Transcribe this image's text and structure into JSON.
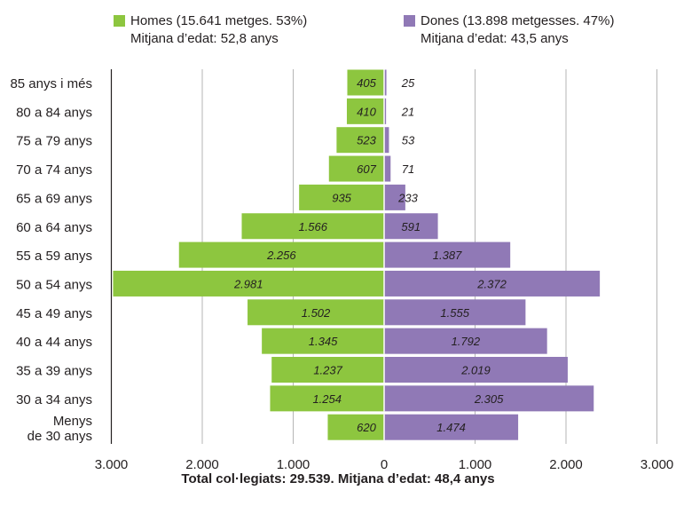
{
  "chart_data": {
    "type": "bar",
    "orientation": "horizontal",
    "layout": "population-pyramid",
    "categories": [
      "85 anys i més",
      "80 a 84 anys",
      "75 a 79 anys",
      "70 a 74 anys",
      "65 a 69 anys",
      "60 a 64 anys",
      "55 a 59 anys",
      "50 a 54 anys",
      "45 a 49 anys",
      "40 a 44 anys",
      "35 a 39 anys",
      "30 a 34 anys",
      "Menys de 30 anys"
    ],
    "category_lines": [
      [
        "85 anys i més"
      ],
      [
        "80 a 84 anys"
      ],
      [
        "75 a 79 anys"
      ],
      [
        "70 a 74 anys"
      ],
      [
        "65 a 69 anys"
      ],
      [
        "60 a 64 anys"
      ],
      [
        "55 a 59 anys"
      ],
      [
        "50 a 54 anys"
      ],
      [
        "45 a 49 anys"
      ],
      [
        "40 a 44 anys"
      ],
      [
        "35 a 39 anys"
      ],
      [
        "30 a 34 anys"
      ],
      [
        "Menys",
        "de 30 anys"
      ]
    ],
    "series": [
      {
        "key": "homes",
        "side": "left",
        "color": "#8dc63f",
        "values": [
          405,
          410,
          523,
          607,
          935,
          1566,
          2256,
          2981,
          1502,
          1345,
          1237,
          1254,
          620
        ],
        "labels": [
          "405",
          "410",
          "523",
          "607",
          "935",
          "1.566",
          "2.256",
          "2.981",
          "1.502",
          "1.345",
          "1.237",
          "1.254",
          "620"
        ]
      },
      {
        "key": "dones",
        "side": "right",
        "color": "#9079b6",
        "values": [
          25,
          21,
          53,
          71,
          233,
          591,
          1387,
          2372,
          1555,
          1792,
          2019,
          2305,
          1474
        ],
        "labels": [
          "25",
          "21",
          "53",
          "71",
          "233",
          "591",
          "1.387",
          "2.372",
          "1.555",
          "1.792",
          "2.019",
          "2.305",
          "1.474"
        ]
      }
    ],
    "xlim": [
      0,
      3000
    ],
    "x_ticks": [
      3000,
      2000,
      1000,
      0,
      1000,
      2000,
      3000
    ],
    "x_tick_labels": [
      "3.000",
      "2.000",
      "1.000",
      "0",
      "1.000",
      "2.000",
      "3.000"
    ],
    "grid": true,
    "legend": {
      "placement": "top",
      "items": [
        {
          "line1": "Homes (15.641 metges. 53%)",
          "line2": "Mitjana d’edat: 52,8 anys",
          "color": "#8dc63f"
        },
        {
          "line1": "Dones (13.898 metgesses. 47%)",
          "line2": "Mitjana d’edat: 43,5 anys",
          "color": "#9079b6"
        }
      ]
    },
    "footer": "Total col·legiats: 29.539. Mitjana d’edat: 48,4 anys"
  }
}
